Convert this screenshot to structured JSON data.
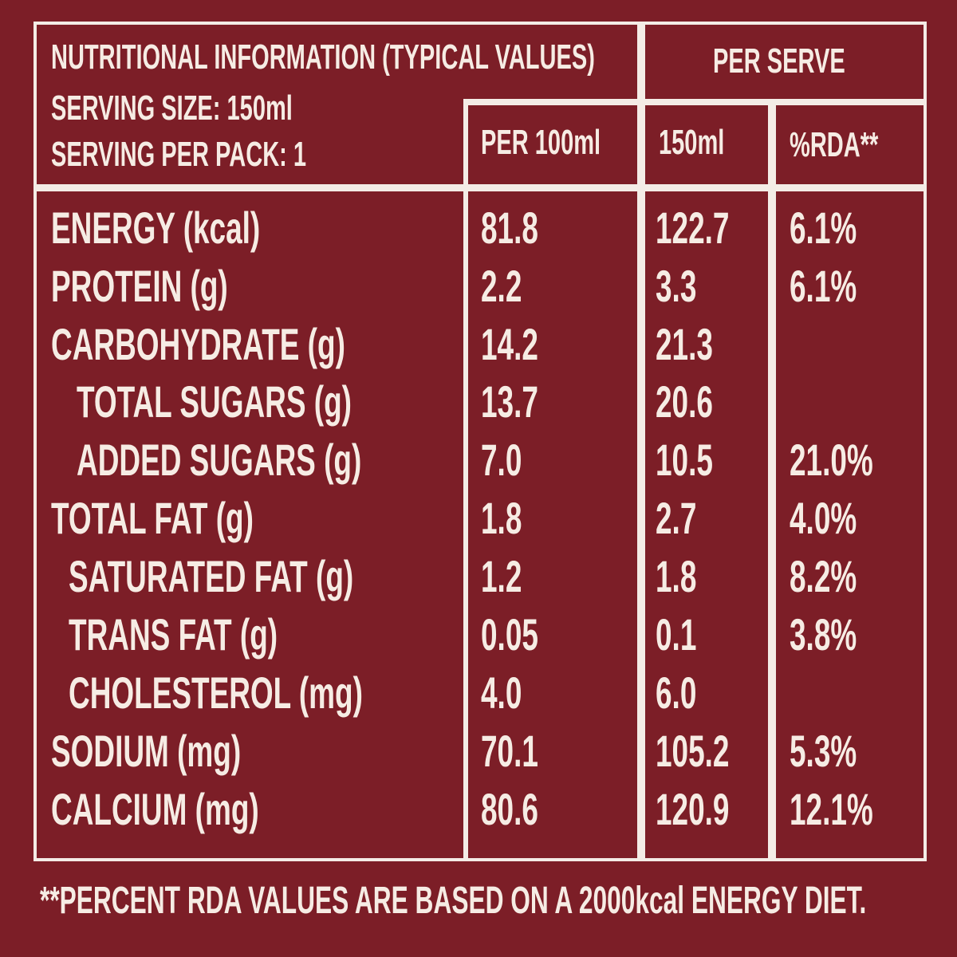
{
  "header": {
    "title": "NUTRITIONAL INFORMATION (TYPICAL VALUES)",
    "serving_size": "SERVING SIZE: 150ml",
    "servings_per_pack": "SERVING PER PACK: 1",
    "per_serve": "PER SERVE",
    "col_per100": "PER 100ml",
    "col_150": "150ml",
    "col_rda": "%RDA**"
  },
  "rows": [
    {
      "label": "ENERGY (kcal)",
      "per100": "81.8",
      "per150": "122.7",
      "rda": "6.1%"
    },
    {
      "label": "PROTEIN (g)",
      "per100": "2.2",
      "per150": "3.3",
      "rda": "6.1%"
    },
    {
      "label": "CARBOHYDRATE (g)",
      "per100": "14.2",
      "per150": "21.3",
      "rda": ""
    },
    {
      "label": "TOTAL SUGARS (g)",
      "per100": "13.7",
      "per150": "20.6",
      "rda": ""
    },
    {
      "label": "ADDED SUGARS (g)",
      "per100": "7.0",
      "per150": "10.5",
      "rda": "21.0%"
    },
    {
      "label": "TOTAL FAT (g)",
      "per100": "1.8",
      "per150": "2.7",
      "rda": "4.0%"
    },
    {
      "label": "SATURATED FAT (g)",
      "per100": "1.2",
      "per150": "1.8",
      "rda": "8.2%"
    },
    {
      "label": "TRANS FAT (g)",
      "per100": "0.05",
      "per150": "0.1",
      "rda": "3.8%"
    },
    {
      "label": "CHOLESTEROL (mg)",
      "per100": "4.0",
      "per150": "6.0",
      "rda": ""
    },
    {
      "label": "SODIUM (mg)",
      "per100": "70.1",
      "per150": "105.2",
      "rda": "5.3%"
    },
    {
      "label": "CALCIUM (mg)",
      "per100": "80.6",
      "per150": "120.9",
      "rda": "12.1%"
    }
  ],
  "footnote": "**PERCENT RDA VALUES ARE BASED ON A 2000kcal ENERGY DIET.",
  "colors": {
    "background": "#7c1e27",
    "text": "#f6ece4"
  }
}
